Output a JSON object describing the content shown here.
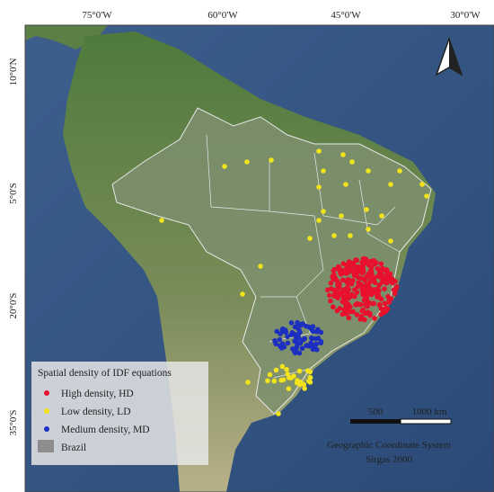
{
  "map": {
    "top_labels": [
      "75°0'W",
      "60°0'W",
      "45°0'W",
      "30°0'W"
    ],
    "left_labels": [
      "10°0'N",
      "5°0'S",
      "20°0'S",
      "35°0'S"
    ]
  },
  "legend": {
    "title": "Spatial density of IDF equations",
    "items": [
      {
        "label": "High density, HD",
        "color": "#e8112d"
      },
      {
        "label": "Low density,  LD",
        "color": "#f2e21c"
      },
      {
        "label": "Medium density,  MD",
        "color": "#1c2fc0"
      },
      {
        "label": "Brazil",
        "color": "#8e8e8e"
      }
    ]
  },
  "scale_bar": {
    "labels": [
      "500",
      "1000 km"
    ]
  },
  "crs": [
    "Geographic Coordinate System",
    "Sirgas 2000"
  ]
}
